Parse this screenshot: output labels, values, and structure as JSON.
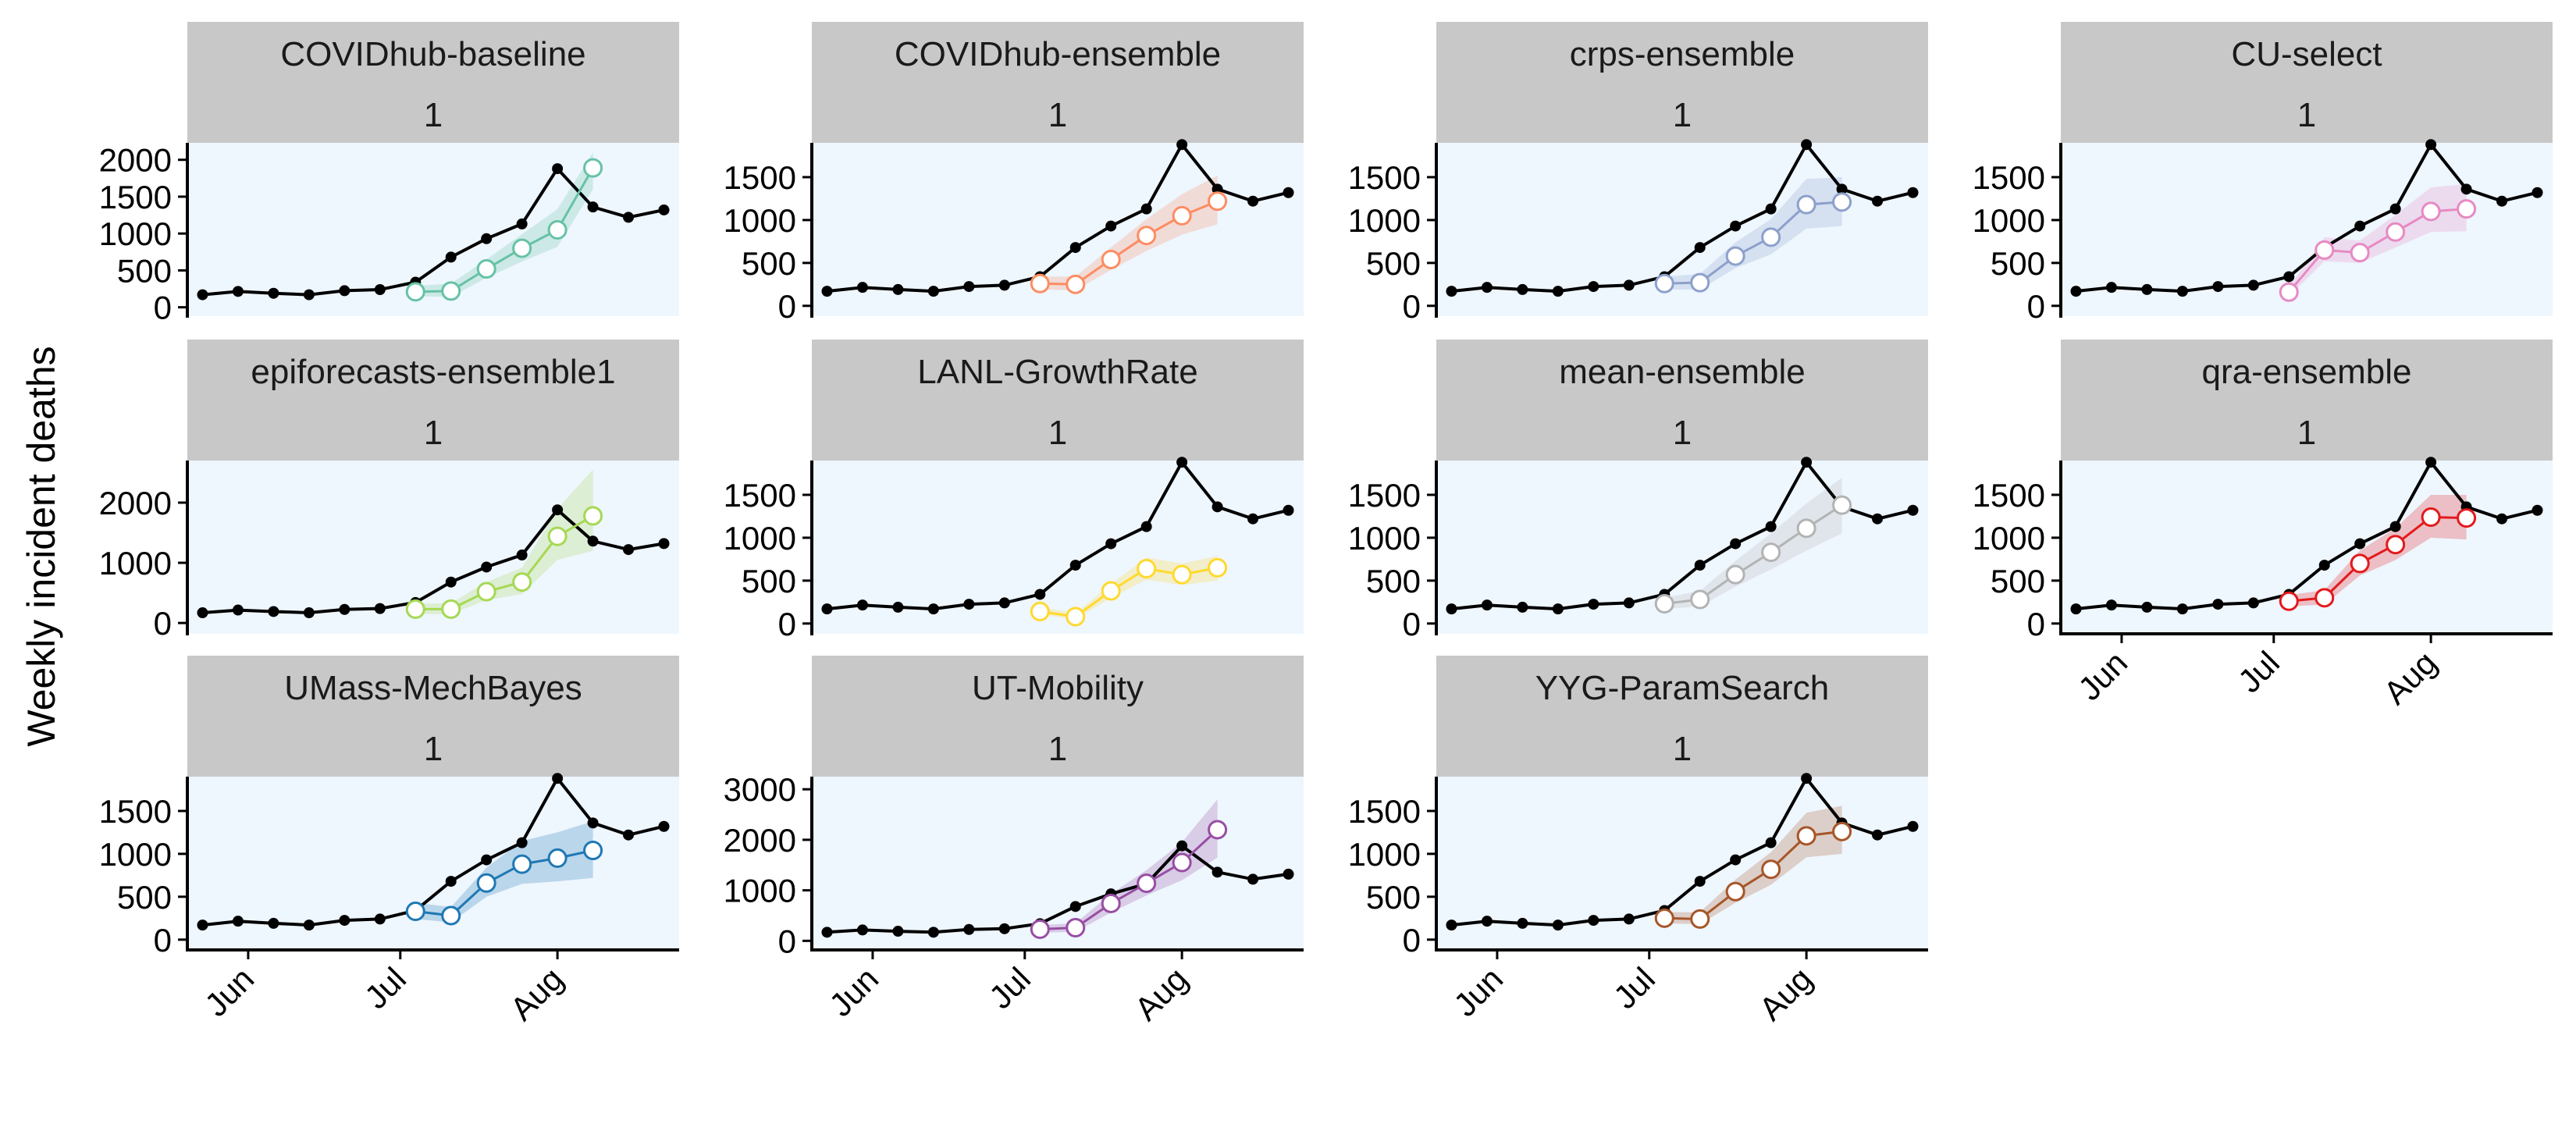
{
  "figure": {
    "ylabel": "Weekly incident deaths",
    "observed_color": "#000000",
    "panel_background": "#EEF6FE",
    "strip_background": "#C8C8C8"
  },
  "chart_data": {
    "type": "line",
    "xlabel": "",
    "ylabel": "Weekly incident deaths",
    "x_tick_labels": [
      "Jun",
      "Jul",
      "Aug"
    ],
    "grid": false,
    "observed": {
      "x": [
        "2020-05-23",
        "2020-05-30",
        "2020-06-06",
        "2020-06-13",
        "2020-06-20",
        "2020-06-27",
        "2020-07-04",
        "2020-07-11",
        "2020-07-18",
        "2020-07-25",
        "2020-08-01",
        "2020-08-08",
        "2020-08-15",
        "2020-08-22"
      ],
      "y": [
        170,
        215,
        190,
        170,
        225,
        240,
        340,
        680,
        930,
        1130,
        1880,
        1360,
        1220,
        1320
      ]
    },
    "panels": [
      {
        "model": "COVIDhub-baseline",
        "horizon": "1",
        "color": "#66C2A5",
        "ylim": [
          -120,
          2230
        ],
        "yticks": [
          0,
          500,
          1000,
          1500,
          2000
        ],
        "forecast": {
          "x": [
            "2020-07-04",
            "2020-07-11",
            "2020-07-18",
            "2020-07-25",
            "2020-08-01",
            "2020-08-08"
          ],
          "y": [
            210,
            220,
            520,
            800,
            1050,
            1890
          ],
          "lower": [
            150,
            140,
            400,
            620,
            820,
            1600
          ],
          "upper": [
            290,
            320,
            650,
            990,
            1330,
            2100
          ]
        }
      },
      {
        "model": "COVIDhub-ensemble",
        "horizon": "1",
        "color": "#FC8D62",
        "ylim": [
          -120,
          1900
        ],
        "yticks": [
          0,
          500,
          1000,
          1500
        ],
        "forecast": {
          "x": [
            "2020-07-04",
            "2020-07-11",
            "2020-07-18",
            "2020-07-25",
            "2020-08-01",
            "2020-08-08"
          ],
          "y": [
            260,
            250,
            540,
            820,
            1050,
            1220
          ],
          "lower": [
            190,
            180,
            420,
            640,
            830,
            950
          ],
          "upper": [
            340,
            340,
            680,
            1010,
            1300,
            1520
          ]
        }
      },
      {
        "model": "crps-ensemble",
        "horizon": "1",
        "color": "#8DA0CB",
        "ylim": [
          -120,
          1900
        ],
        "yticks": [
          0,
          500,
          1000,
          1500
        ],
        "forecast": {
          "x": [
            "2020-07-04",
            "2020-07-11",
            "2020-07-18",
            "2020-07-25",
            "2020-08-01",
            "2020-08-08"
          ],
          "y": [
            260,
            270,
            580,
            800,
            1180,
            1210
          ],
          "lower": [
            190,
            190,
            440,
            600,
            900,
            930
          ],
          "upper": [
            340,
            370,
            740,
            1010,
            1480,
            1500
          ]
        }
      },
      {
        "model": "CU-select",
        "horizon": "1",
        "color": "#E78AC3",
        "ylim": [
          -120,
          1900
        ],
        "yticks": [
          0,
          500,
          1000,
          1500
        ],
        "forecast": {
          "x": [
            "2020-07-04",
            "2020-07-11",
            "2020-07-18",
            "2020-07-25",
            "2020-08-01",
            "2020-08-08"
          ],
          "y": [
            160,
            650,
            620,
            860,
            1100,
            1130
          ],
          "lower": [
            110,
            520,
            500,
            680,
            860,
            870
          ],
          "upper": [
            220,
            800,
            760,
            1060,
            1380,
            1420
          ]
        }
      },
      {
        "model": "epiforecasts-ensemble1",
        "horizon": "1",
        "color": "#A6D854",
        "ylim": [
          -180,
          2700
        ],
        "yticks": [
          0,
          1000,
          2000
        ],
        "forecast": {
          "x": [
            "2020-07-04",
            "2020-07-11",
            "2020-07-18",
            "2020-07-25",
            "2020-08-01",
            "2020-08-08"
          ],
          "y": [
            230,
            230,
            520,
            680,
            1440,
            1780
          ],
          "lower": [
            150,
            150,
            380,
            480,
            1050,
            1200
          ],
          "upper": [
            320,
            330,
            680,
            920,
            1900,
            2550
          ]
        }
      },
      {
        "model": "LANL-GrowthRate",
        "horizon": "1",
        "color": "#FFD92F",
        "ylim": [
          -120,
          1900
        ],
        "yticks": [
          0,
          500,
          1000,
          1500
        ],
        "forecast": {
          "x": [
            "2020-07-04",
            "2020-07-11",
            "2020-07-18",
            "2020-07-25",
            "2020-08-01",
            "2020-08-08"
          ],
          "y": [
            140,
            80,
            380,
            640,
            570,
            650
          ],
          "lower": [
            100,
            50,
            300,
            510,
            450,
            500
          ],
          "upper": [
            190,
            120,
            460,
            770,
            700,
            790
          ]
        }
      },
      {
        "model": "mean-ensemble",
        "horizon": "1",
        "color": "#B3B3B3",
        "ylim": [
          -120,
          1900
        ],
        "yticks": [
          0,
          500,
          1000,
          1500
        ],
        "forecast": {
          "x": [
            "2020-07-04",
            "2020-07-11",
            "2020-07-18",
            "2020-07-25",
            "2020-08-01",
            "2020-08-08"
          ],
          "y": [
            230,
            280,
            570,
            830,
            1110,
            1380
          ],
          "lower": [
            170,
            200,
            430,
            630,
            850,
            1050
          ],
          "upper": [
            300,
            380,
            730,
            1050,
            1400,
            1700
          ]
        }
      },
      {
        "model": "qra-ensemble",
        "horizon": "1",
        "color": "#E31A1C",
        "ylim": [
          -120,
          1900
        ],
        "yticks": [
          0,
          500,
          1000,
          1500
        ],
        "forecast": {
          "x": [
            "2020-07-04",
            "2020-07-11",
            "2020-07-18",
            "2020-07-25",
            "2020-08-01",
            "2020-08-08"
          ],
          "y": [
            260,
            300,
            700,
            920,
            1240,
            1230
          ],
          "lower": [
            200,
            220,
            560,
            740,
            1000,
            980
          ],
          "upper": [
            330,
            390,
            850,
            1110,
            1500,
            1500
          ]
        }
      },
      {
        "model": "UMass-MechBayes",
        "horizon": "1",
        "color": "#1F78B4",
        "ylim": [
          -120,
          1900
        ],
        "yticks": [
          0,
          500,
          1000,
          1500
        ],
        "forecast": {
          "x": [
            "2020-07-04",
            "2020-07-11",
            "2020-07-18",
            "2020-07-25",
            "2020-08-01",
            "2020-08-08"
          ],
          "y": [
            330,
            280,
            660,
            880,
            950,
            1040
          ],
          "lower": [
            240,
            200,
            500,
            650,
            680,
            720
          ],
          "upper": [
            430,
            380,
            840,
            1150,
            1250,
            1380
          ]
        }
      },
      {
        "model": "UT-Mobility",
        "horizon": "1",
        "color": "#984EA3",
        "ylim": [
          -180,
          3250
        ],
        "yticks": [
          0,
          1000,
          2000,
          3000
        ],
        "forecast": {
          "x": [
            "2020-07-04",
            "2020-07-11",
            "2020-07-18",
            "2020-07-25",
            "2020-08-01",
            "2020-08-08"
          ],
          "y": [
            230,
            260,
            740,
            1140,
            1550,
            2200
          ],
          "lower": [
            160,
            180,
            560,
            900,
            1200,
            1650
          ],
          "upper": [
            310,
            350,
            930,
            1400,
            1950,
            2800
          ]
        }
      },
      {
        "model": "YYG-ParamSearch",
        "horizon": "1",
        "color": "#A65628",
        "ylim": [
          -120,
          1900
        ],
        "yticks": [
          0,
          500,
          1000,
          1500
        ],
        "forecast": {
          "x": [
            "2020-07-04",
            "2020-07-11",
            "2020-07-18",
            "2020-07-25",
            "2020-08-01",
            "2020-08-08"
          ],
          "y": [
            250,
            240,
            560,
            820,
            1210,
            1260
          ],
          "lower": [
            190,
            180,
            430,
            640,
            960,
            1000
          ],
          "upper": [
            320,
            320,
            700,
            1020,
            1480,
            1560
          ]
        }
      }
    ]
  }
}
